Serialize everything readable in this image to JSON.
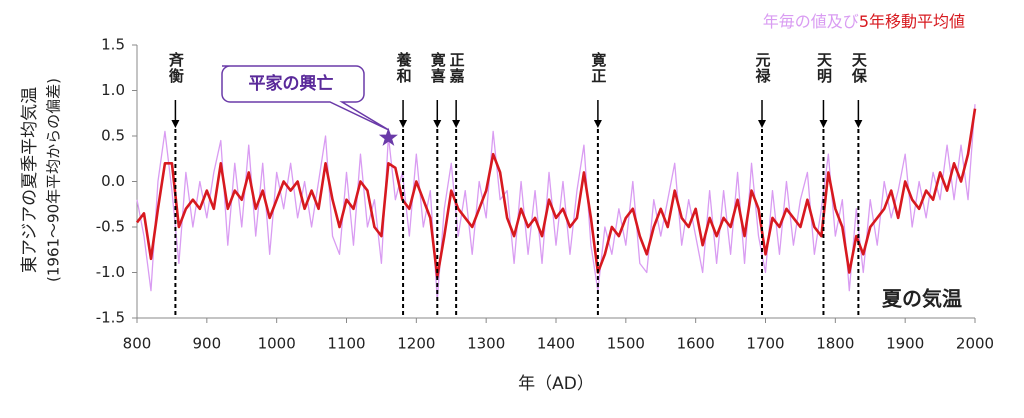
{
  "chart_data": {
    "type": "line",
    "y_axis_title": "東アジアの夏季平均気温",
    "y_axis_subtitle": "(1961～90年平均からの偏差)",
    "x_axis_title": "年（AD）",
    "legend_conjunction": "及び",
    "label": "夏の気温",
    "callout": {
      "text": "平家の興亡",
      "x": 1160,
      "y": 0.48
    },
    "events": [
      {
        "label": "斉衡",
        "x": 855
      },
      {
        "label": "養和",
        "x": 1181
      },
      {
        "label": "寛喜",
        "x": 1230
      },
      {
        "label": "正嘉",
        "x": 1257
      },
      {
        "label": "寛正",
        "x": 1460
      },
      {
        "label": "元禄",
        "x": 1695
      },
      {
        "label": "天明",
        "x": 1783
      },
      {
        "label": "天保",
        "x": 1833
      }
    ],
    "x": [
      800,
      810,
      820,
      830,
      840,
      850,
      860,
      870,
      880,
      890,
      900,
      910,
      920,
      930,
      940,
      950,
      960,
      970,
      980,
      990,
      1000,
      1010,
      1020,
      1030,
      1040,
      1050,
      1060,
      1070,
      1080,
      1090,
      1100,
      1110,
      1120,
      1130,
      1140,
      1150,
      1160,
      1170,
      1180,
      1190,
      1200,
      1210,
      1220,
      1230,
      1240,
      1250,
      1260,
      1270,
      1280,
      1290,
      1300,
      1310,
      1320,
      1330,
      1340,
      1350,
      1360,
      1370,
      1380,
      1390,
      1400,
      1410,
      1420,
      1430,
      1440,
      1450,
      1460,
      1470,
      1480,
      1490,
      1500,
      1510,
      1520,
      1530,
      1540,
      1550,
      1560,
      1570,
      1580,
      1590,
      1600,
      1610,
      1620,
      1630,
      1640,
      1650,
      1660,
      1670,
      1680,
      1690,
      1700,
      1710,
      1720,
      1730,
      1740,
      1750,
      1760,
      1770,
      1780,
      1790,
      1800,
      1810,
      1820,
      1830,
      1840,
      1850,
      1860,
      1870,
      1880,
      1890,
      1900,
      1910,
      1920,
      1930,
      1940,
      1950,
      1960,
      1970,
      1980,
      1990,
      2000
    ],
    "series": [
      {
        "name": "年毎の値",
        "color": "#d99cf2",
        "width": 1.3,
        "values": [
          -0.2,
          -0.6,
          -1.2,
          0.0,
          0.55,
          -0.1,
          -0.9,
          0.1,
          -0.5,
          0.0,
          -0.4,
          0.1,
          0.45,
          -0.7,
          0.2,
          -0.5,
          0.4,
          -0.6,
          0.2,
          -0.8,
          0.1,
          -0.3,
          0.2,
          -0.4,
          0.0,
          -0.5,
          0.0,
          0.5,
          -0.6,
          -0.8,
          0.1,
          -0.7,
          0.3,
          -0.5,
          -0.2,
          -0.9,
          0.5,
          -0.2,
          0.1,
          -0.6,
          0.3,
          -0.5,
          -0.1,
          -1.3,
          -0.3,
          0.2,
          -0.6,
          -0.1,
          -0.8,
          0.0,
          -0.4,
          0.55,
          -0.2,
          -0.1,
          -0.9,
          0.0,
          -0.8,
          -0.1,
          -0.9,
          0.1,
          -0.7,
          0.0,
          -0.8,
          -0.1,
          0.4,
          -0.7,
          -1.2,
          -0.5,
          -0.8,
          -0.3,
          -0.7,
          0.0,
          -0.9,
          -1.0,
          -0.2,
          -0.6,
          -0.2,
          0.2,
          -0.7,
          -0.2,
          -0.6,
          -1.0,
          -0.1,
          -0.9,
          -0.1,
          -0.8,
          0.1,
          -0.9,
          0.2,
          -0.6,
          -1.0,
          -0.1,
          -0.8,
          0.0,
          -0.7,
          -0.2,
          0.1,
          -0.8,
          -0.3,
          0.3,
          -0.6,
          -0.2,
          -1.2,
          -0.3,
          -1.0,
          -0.2,
          -0.7,
          0.0,
          -0.4,
          -0.1,
          0.3,
          -0.5,
          0.0,
          -0.4,
          0.1,
          -0.2,
          0.4,
          -0.2,
          0.4,
          -0.2,
          0.85
        ]
      },
      {
        "name": "5年移動平均値",
        "color": "#d7191f",
        "width": 2.6,
        "values": [
          -0.45,
          -0.35,
          -0.85,
          -0.3,
          0.2,
          0.2,
          -0.5,
          -0.3,
          -0.2,
          -0.3,
          -0.1,
          -0.3,
          0.2,
          -0.3,
          -0.1,
          -0.2,
          0.1,
          -0.3,
          -0.1,
          -0.4,
          -0.2,
          0.0,
          -0.1,
          0.0,
          -0.3,
          -0.1,
          -0.3,
          0.2,
          -0.2,
          -0.5,
          -0.2,
          -0.3,
          0.0,
          -0.1,
          -0.5,
          -0.6,
          0.2,
          0.15,
          -0.2,
          -0.3,
          0.0,
          -0.2,
          -0.4,
          -1.05,
          -0.6,
          -0.1,
          -0.3,
          -0.4,
          -0.5,
          -0.3,
          -0.1,
          0.3,
          0.1,
          -0.4,
          -0.6,
          -0.3,
          -0.5,
          -0.4,
          -0.6,
          -0.2,
          -0.4,
          -0.3,
          -0.5,
          -0.4,
          0.1,
          -0.4,
          -1.0,
          -0.8,
          -0.5,
          -0.6,
          -0.4,
          -0.3,
          -0.6,
          -0.8,
          -0.5,
          -0.3,
          -0.5,
          -0.1,
          -0.4,
          -0.5,
          -0.3,
          -0.7,
          -0.4,
          -0.6,
          -0.4,
          -0.5,
          -0.2,
          -0.6,
          -0.1,
          -0.3,
          -0.8,
          -0.4,
          -0.5,
          -0.3,
          -0.4,
          -0.5,
          -0.2,
          -0.5,
          -0.6,
          0.1,
          -0.3,
          -0.5,
          -1.0,
          -0.6,
          -0.8,
          -0.5,
          -0.4,
          -0.3,
          -0.1,
          -0.4,
          0.0,
          -0.2,
          -0.3,
          -0.1,
          -0.2,
          0.1,
          -0.1,
          0.2,
          0.0,
          0.3,
          0.8
        ]
      }
    ],
    "xlim": [
      800,
      2000
    ],
    "xticks": [
      800,
      900,
      1000,
      1100,
      1200,
      1300,
      1400,
      1500,
      1600,
      1700,
      1800,
      1900,
      2000
    ],
    "ylim": [
      -1.5,
      1.5
    ],
    "yticks": [
      -1.5,
      {
        "value": -1.0,
        "label": "-1.0"
      },
      -0.5,
      {
        "value": 0.0,
        "label": "0.0"
      },
      0.5,
      {
        "value": 1.0,
        "label": "1.0"
      },
      1.5
    ],
    "grid": false
  }
}
